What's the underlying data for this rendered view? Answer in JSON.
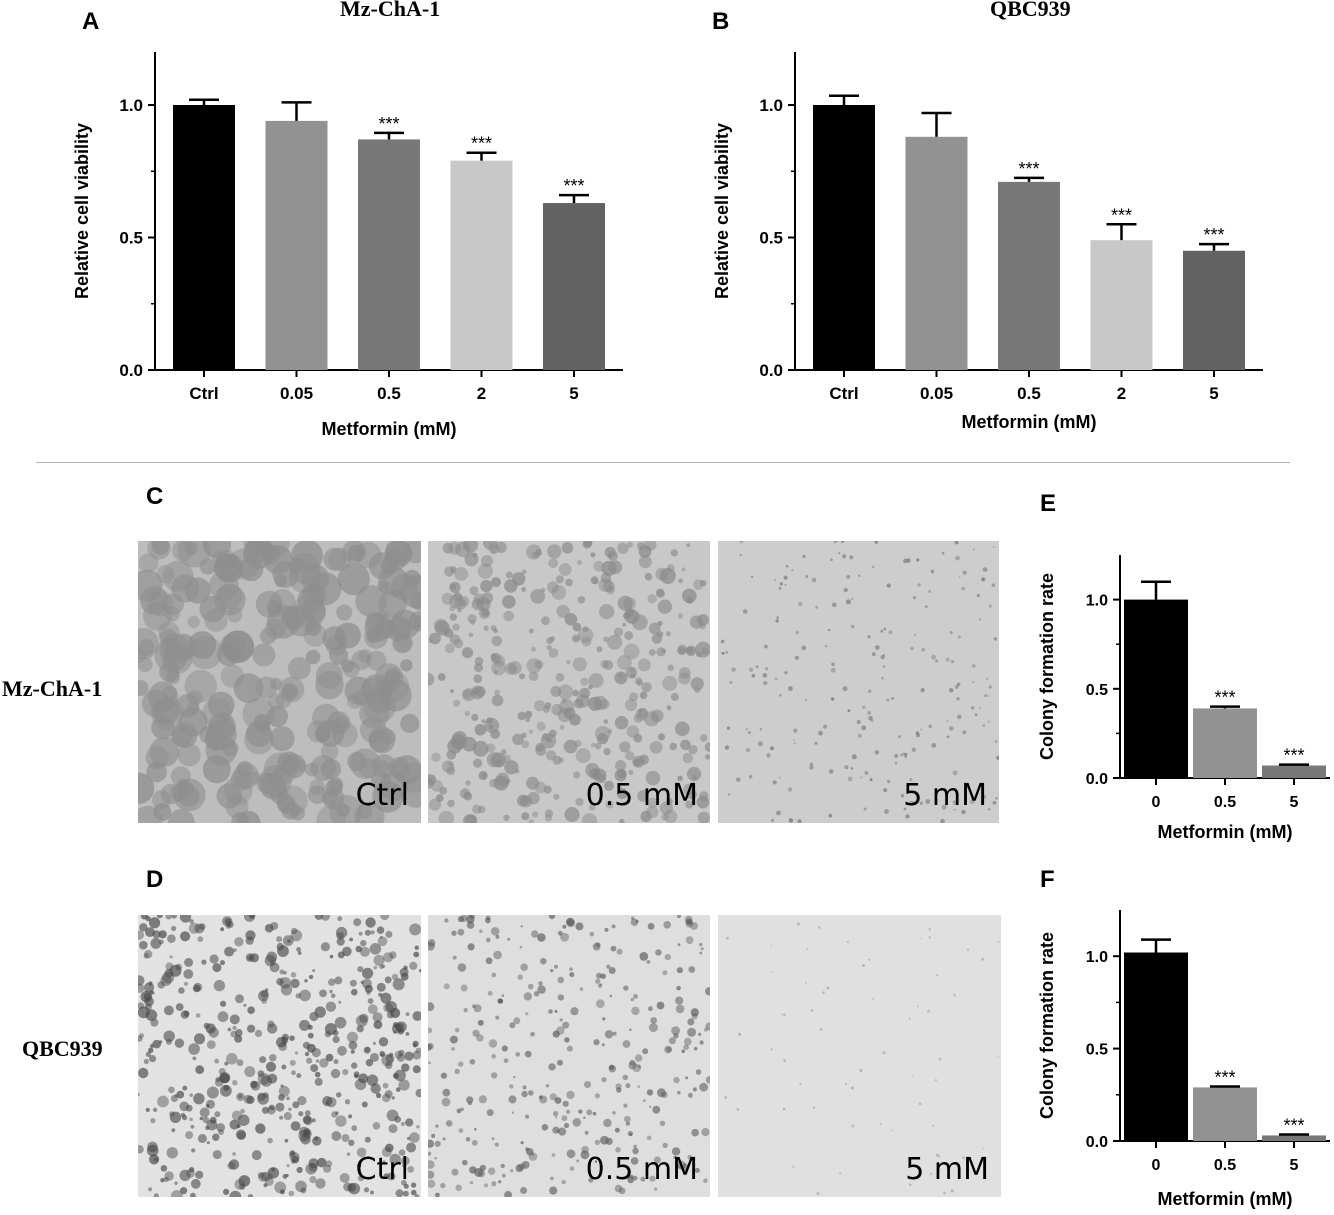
{
  "panels": {
    "a": {
      "letter": "A",
      "title": "Mz-ChA-1"
    },
    "b": {
      "letter": "B",
      "title": "QBC939"
    },
    "c": {
      "letter": "C"
    },
    "d": {
      "letter": "D"
    },
    "e": {
      "letter": "E"
    },
    "f": {
      "letter": "F"
    }
  },
  "row_labels": {
    "row1": "Mz-ChA-1",
    "row2": "QBC939"
  },
  "photos": {
    "row1": [
      {
        "label": "Ctrl",
        "bg": "#bdbdbd",
        "colony": "#8e8e8e"
      },
      {
        "label": "0.5 mM",
        "bg": "#c8c8c8",
        "colony": "#8a8a8a"
      },
      {
        "label": "5 mM",
        "bg": "#cdcdcd",
        "colony": "#777777"
      }
    ],
    "row2": [
      {
        "label": "Ctrl",
        "bg": "#e2e2e2",
        "colony": "#4a4a4a"
      },
      {
        "label": "0.5 mM",
        "bg": "#dedede",
        "colony": "#555555"
      },
      {
        "label": "5 mM",
        "bg": "#e0e0e0",
        "colony": "#888888"
      }
    ]
  },
  "chart_data": [
    {
      "id": "A",
      "type": "bar",
      "title": "Mz-ChA-1",
      "categories": [
        "Ctrl",
        "0.05",
        "0.5",
        "2",
        "5"
      ],
      "values": [
        1.0,
        0.94,
        0.87,
        0.79,
        0.63
      ],
      "errors": [
        0.02,
        0.07,
        0.025,
        0.03,
        0.03
      ],
      "significance": [
        "",
        "",
        "***",
        "***",
        "***"
      ],
      "colors": [
        "#000000",
        "#929292",
        "#787878",
        "#c8c8c8",
        "#626262"
      ],
      "xlabel": "Metformin (mM)",
      "ylabel": "Relative cell  viability",
      "ylim": [
        0,
        1.2
      ],
      "yticks": [
        "0.0",
        "0.5",
        "1.0"
      ],
      "grid": false
    },
    {
      "id": "B",
      "type": "bar",
      "title": "QBC939",
      "categories": [
        "Ctrl",
        "0.05",
        "0.5",
        "2",
        "5"
      ],
      "values": [
        1.0,
        0.88,
        0.71,
        0.49,
        0.45
      ],
      "errors": [
        0.035,
        0.09,
        0.015,
        0.06,
        0.025
      ],
      "significance": [
        "",
        "",
        "***",
        "***",
        "***"
      ],
      "colors": [
        "#000000",
        "#929292",
        "#787878",
        "#c8c8c8",
        "#626262"
      ],
      "xlabel": "Metformin (mM)",
      "ylabel": "Relative cell  viability",
      "ylim": [
        0,
        1.2
      ],
      "yticks": [
        "0.0",
        "0.5",
        "1.0"
      ],
      "grid": false
    },
    {
      "id": "E",
      "type": "bar",
      "categories": [
        "0",
        "0.5",
        "5"
      ],
      "values": [
        1.0,
        0.39,
        0.07
      ],
      "errors": [
        0.1,
        0.01,
        0.005
      ],
      "significance": [
        "",
        "***",
        "***"
      ],
      "colors": [
        "#000000",
        "#929292",
        "#787878"
      ],
      "xlabel": "Metformin (mM)",
      "ylabel": "Colony formation rate",
      "ylim": [
        0,
        1.25
      ],
      "yticks": [
        "0.0",
        "0.5",
        "1.0"
      ],
      "grid": false
    },
    {
      "id": "F",
      "type": "bar",
      "categories": [
        "0",
        "0.5",
        "5"
      ],
      "values": [
        1.02,
        0.29,
        0.03
      ],
      "errors": [
        0.07,
        0.005,
        0.005
      ],
      "significance": [
        "",
        "***",
        "***"
      ],
      "colors": [
        "#000000",
        "#929292",
        "#787878"
      ],
      "xlabel": "Metformin (mM)",
      "ylabel": "Colony formation rate",
      "ylim": [
        0,
        1.25
      ],
      "yticks": [
        "0.0",
        "0.5",
        "1.0"
      ],
      "grid": false
    }
  ]
}
